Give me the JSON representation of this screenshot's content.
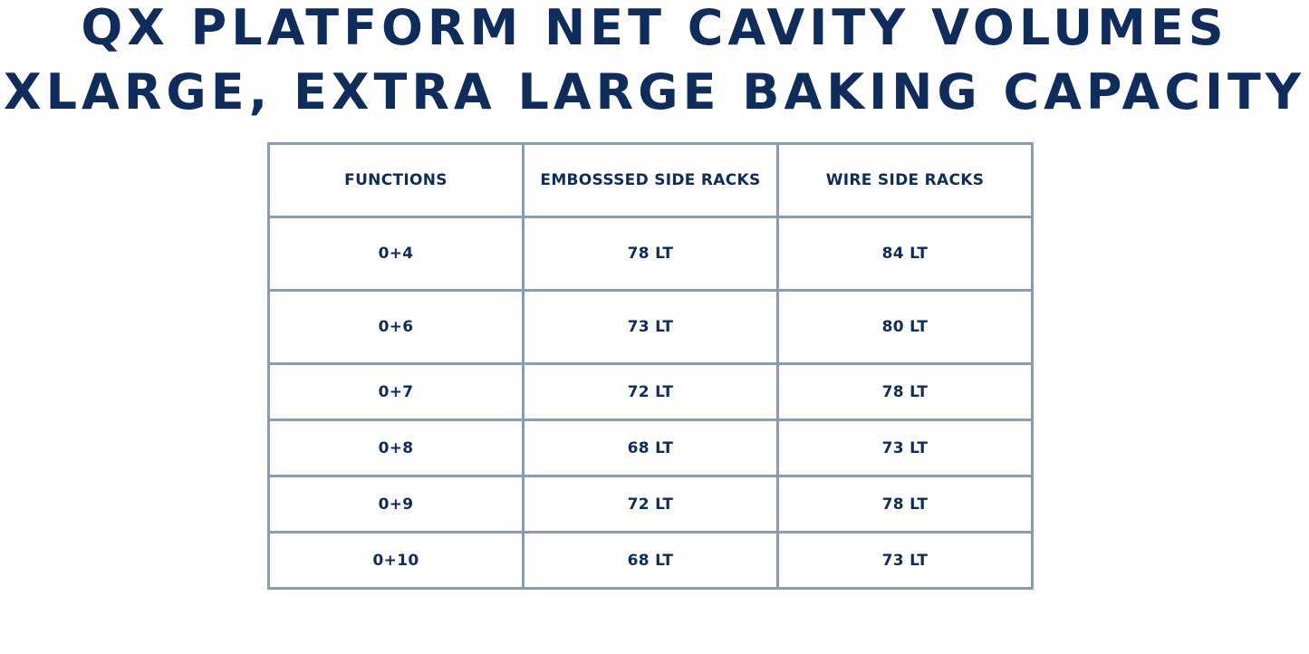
{
  "title": {
    "line1": "QX PLATFORM NET CAVITY VOLUMES",
    "line2": "XLARGE, EXTRA LARGE BAKING CAPACITY"
  },
  "table": {
    "headers": [
      "FUNCTIONS",
      "EMBOSSSED SIDE RACKS",
      "WIRE SIDE RACKS"
    ],
    "rows": [
      [
        "0+4",
        "78 LT",
        "84 LT"
      ],
      [
        "0+6",
        "73 LT",
        "80 LT"
      ],
      [
        "0+7",
        "72 LT",
        "78 LT"
      ],
      [
        "0+8",
        "68 LT",
        "73 LT"
      ],
      [
        "0+9",
        "72 LT",
        "78 LT"
      ],
      [
        "0+10",
        "68 LT",
        "73 LT"
      ]
    ]
  },
  "colors": {
    "text": "#0f2d5c",
    "border": "#8a9bb5"
  }
}
